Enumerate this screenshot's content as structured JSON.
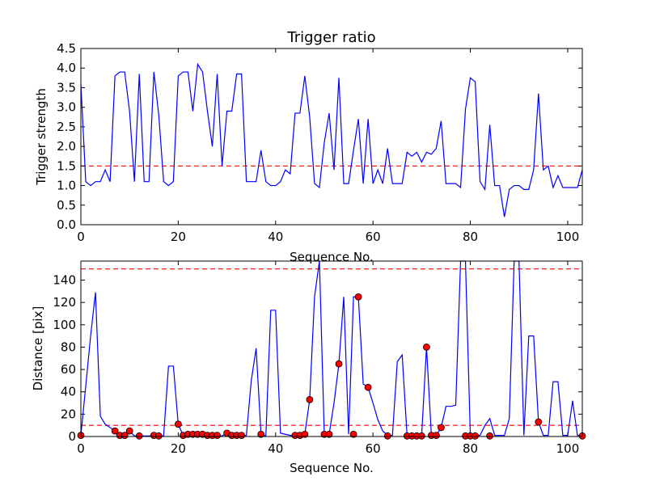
{
  "chart_data": [
    {
      "type": "line",
      "title": "Trigger ratio",
      "xlabel": "Sequence No.",
      "ylabel": "Trigger strength",
      "xlim": [
        0,
        103
      ],
      "ylim": [
        0,
        4.5
      ],
      "xticks": [
        0,
        20,
        40,
        60,
        80,
        100
      ],
      "yticks": [
        0.0,
        0.5,
        1.0,
        1.5,
        2.0,
        2.5,
        3.0,
        3.5,
        4.0,
        4.5
      ],
      "xtick_labels": [
        "0",
        "20",
        "40",
        "60",
        "80",
        "100"
      ],
      "ytick_labels": [
        "0.0",
        "0.5",
        "1.0",
        "1.5",
        "2.0",
        "2.5",
        "3.0",
        "3.5",
        "4.0",
        "4.5"
      ],
      "threshold": 1.5,
      "colors": {
        "series": "#0000ff",
        "threshold": "#ff0000"
      },
      "series": [
        {
          "values": [
            3.6,
            1.1,
            1.0,
            1.1,
            1.1,
            1.4,
            1.1,
            3.8,
            3.9,
            3.9,
            2.9,
            1.1,
            3.85,
            1.1,
            1.1,
            3.9,
            2.8,
            1.1,
            1.0,
            1.1,
            3.8,
            3.9,
            3.9,
            2.9,
            4.1,
            3.9,
            2.9,
            2.0,
            3.85,
            1.5,
            2.9,
            2.9,
            3.85,
            3.85,
            1.1,
            1.1,
            1.1,
            1.9,
            1.1,
            1.0,
            1.0,
            1.1,
            1.4,
            1.3,
            2.85,
            2.85,
            3.8,
            2.75,
            1.05,
            0.95,
            2.1,
            2.85,
            1.4,
            3.75,
            1.05,
            1.05,
            1.9,
            2.7,
            1.05,
            2.7,
            1.05,
            1.4,
            1.05,
            1.95,
            1.05,
            1.05,
            1.05,
            1.85,
            1.75,
            1.85,
            1.6,
            1.85,
            1.8,
            1.95,
            2.65,
            1.05,
            1.05,
            1.05,
            0.95,
            2.95,
            3.75,
            3.65,
            1.1,
            0.9,
            2.55,
            1.0,
            1.0,
            0.2,
            0.9,
            1.0,
            1.0,
            0.9,
            0.9,
            1.4,
            3.35,
            1.4,
            1.5,
            0.95,
            1.25,
            0.95,
            0.95,
            0.95,
            0.95,
            1.4
          ]
        }
      ]
    },
    {
      "type": "line",
      "title": "",
      "xlabel": "Sequence No.",
      "ylabel": "Distance [pix]",
      "xlim": [
        0,
        103
      ],
      "ylim": [
        0,
        157
      ],
      "xticks": [
        0,
        20,
        40,
        60,
        80,
        100
      ],
      "yticks": [
        0,
        20,
        40,
        60,
        80,
        100,
        120,
        140
      ],
      "xtick_labels": [
        "0",
        "20",
        "40",
        "60",
        "80",
        "100"
      ],
      "ytick_labels": [
        "0",
        "20",
        "40",
        "60",
        "80",
        "100",
        "120",
        "140"
      ],
      "thresholds": [
        10,
        150
      ],
      "colors": {
        "series": "#0000ff",
        "threshold": "#ff0000",
        "marker": "#ff0000"
      },
      "series": [
        {
          "values": [
            1,
            45,
            90,
            129,
            18,
            11,
            8,
            5,
            1,
            2,
            5,
            0.5,
            1,
            0.5,
            0.5,
            1,
            0.5,
            0.5,
            63,
            63,
            11,
            1,
            1,
            2,
            2,
            2,
            1,
            1,
            1,
            0.5,
            3,
            1,
            1,
            1,
            1,
            50,
            79,
            2,
            0.5,
            113,
            113,
            3,
            2,
            1,
            1,
            1,
            2,
            33,
            125,
            157,
            2,
            2,
            30,
            65,
            125,
            2,
            125,
            125,
            47,
            44,
            30,
            15,
            5,
            1,
            1,
            67,
            73,
            1,
            1,
            1,
            1,
            80,
            1,
            1,
            8,
            27,
            27,
            28,
            157,
            157,
            1,
            1,
            1,
            10,
            16,
            1,
            1,
            1,
            16,
            157,
            157,
            1,
            90,
            90,
            13,
            1,
            1,
            49,
            49,
            1,
            1,
            32,
            1,
            0.5
          ]
        }
      ],
      "markers": {
        "x": [
          0,
          7,
          8,
          9,
          10,
          12,
          15,
          16,
          20,
          21,
          22,
          23,
          24,
          25,
          26,
          27,
          28,
          30,
          31,
          32,
          33,
          37,
          44,
          45,
          46,
          47,
          50,
          51,
          53,
          56,
          57,
          59,
          63,
          67,
          68,
          69,
          70,
          71,
          72,
          73,
          74,
          79,
          80,
          81,
          84,
          94,
          103
        ],
        "y": [
          1,
          5,
          1,
          1,
          5,
          0.5,
          1,
          0.5,
          11,
          1,
          2,
          2,
          2,
          2,
          1,
          1,
          1,
          3,
          1,
          1,
          1,
          2,
          1,
          1,
          2,
          33,
          2,
          2,
          65,
          2,
          125,
          44,
          0.5,
          0.5,
          0.5,
          0.5,
          0.5,
          80,
          1,
          1,
          8,
          0.5,
          0.5,
          0.5,
          0.5,
          13,
          0.5
        ]
      }
    }
  ]
}
